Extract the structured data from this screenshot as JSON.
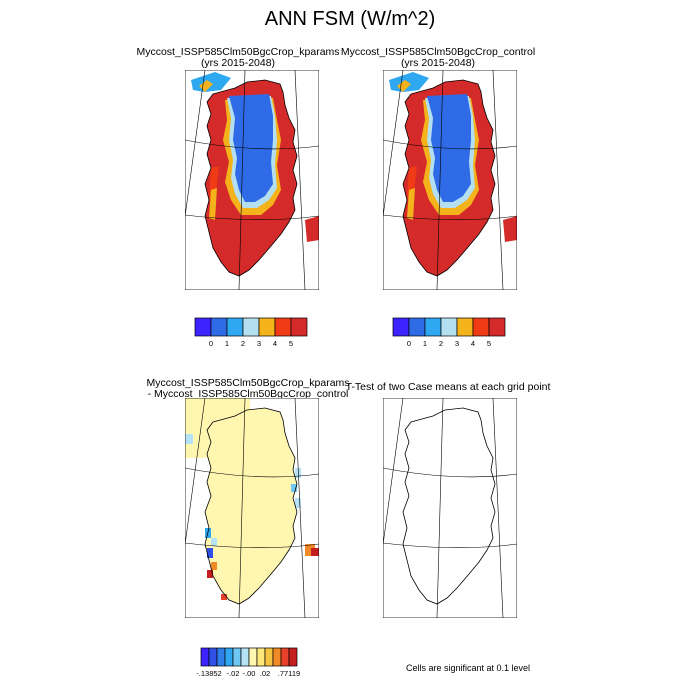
{
  "title": "ANN FSM (W/m^2)",
  "panels": [
    {
      "title": "Myccost_ISSP585Clm50BgcCrop_kparams",
      "subtitle": "(yrs 2015-2048)"
    },
    {
      "title": "Myccost_ISSP585Clm50BgcCrop_control",
      "subtitle": "(yrs 2015-2048)"
    },
    {
      "title": "Myccost_ISSP585Clm50BgcCrop_kparams",
      "subtitle": "- Myccost_ISSP585Clm50BgcCrop_control"
    },
    {
      "title": "T-Test of two Case means at each grid point",
      "subtitle": ""
    }
  ],
  "colorbar_top": {
    "colors": [
      "#3c23ff",
      "#2f6be6",
      "#2ea8f0",
      "#b3dff0",
      "#f5b31b",
      "#f03b16",
      "#d42a2a"
    ],
    "labels": [
      "0",
      "1",
      "2",
      "3",
      "4",
      "5"
    ]
  },
  "colorbar_diff": {
    "colors": [
      "#3c23ff",
      "#3050e8",
      "#2e7fea",
      "#2ea6f0",
      "#6fc7f3",
      "#b5e2f5",
      "#fff7b0",
      "#ffe97a",
      "#f5c542",
      "#f08a26",
      "#e8412a",
      "#c51e1e"
    ],
    "labels": [
      "-.13852",
      "-.02",
      "-.00",
      ".02",
      ".77119"
    ]
  },
  "note": "Cells are significant at 0.1 level",
  "chart_data": {
    "type": "heatmap",
    "title": "ANN FSM (W/m^2)",
    "variable": "FSM",
    "units": "W/m^2",
    "years": "2015-2048",
    "region": "Greenland",
    "panels": [
      {
        "case": "Myccost_ISSP585Clm50BgcCrop_kparams",
        "interior_value_bin": "0-1",
        "coastal_value_bin": "4-5+"
      },
      {
        "case": "Myccost_ISSP585Clm50BgcCrop_control",
        "interior_value_bin": "0-1",
        "coastal_value_bin": "4-5+"
      },
      {
        "case": "kparams - control",
        "range": [
          -0.13852,
          0.77119
        ],
        "dominant_bin": "-.00 to .02"
      },
      {
        "case": "T-Test",
        "significant_cells": 0
      }
    ],
    "colorbar_levels_top": [
      0,
      1,
      2,
      3,
      4,
      5
    ],
    "colorbar_levels_diff": [
      -0.13852,
      -0.02,
      -0.0,
      0.02,
      0.77119
    ]
  }
}
